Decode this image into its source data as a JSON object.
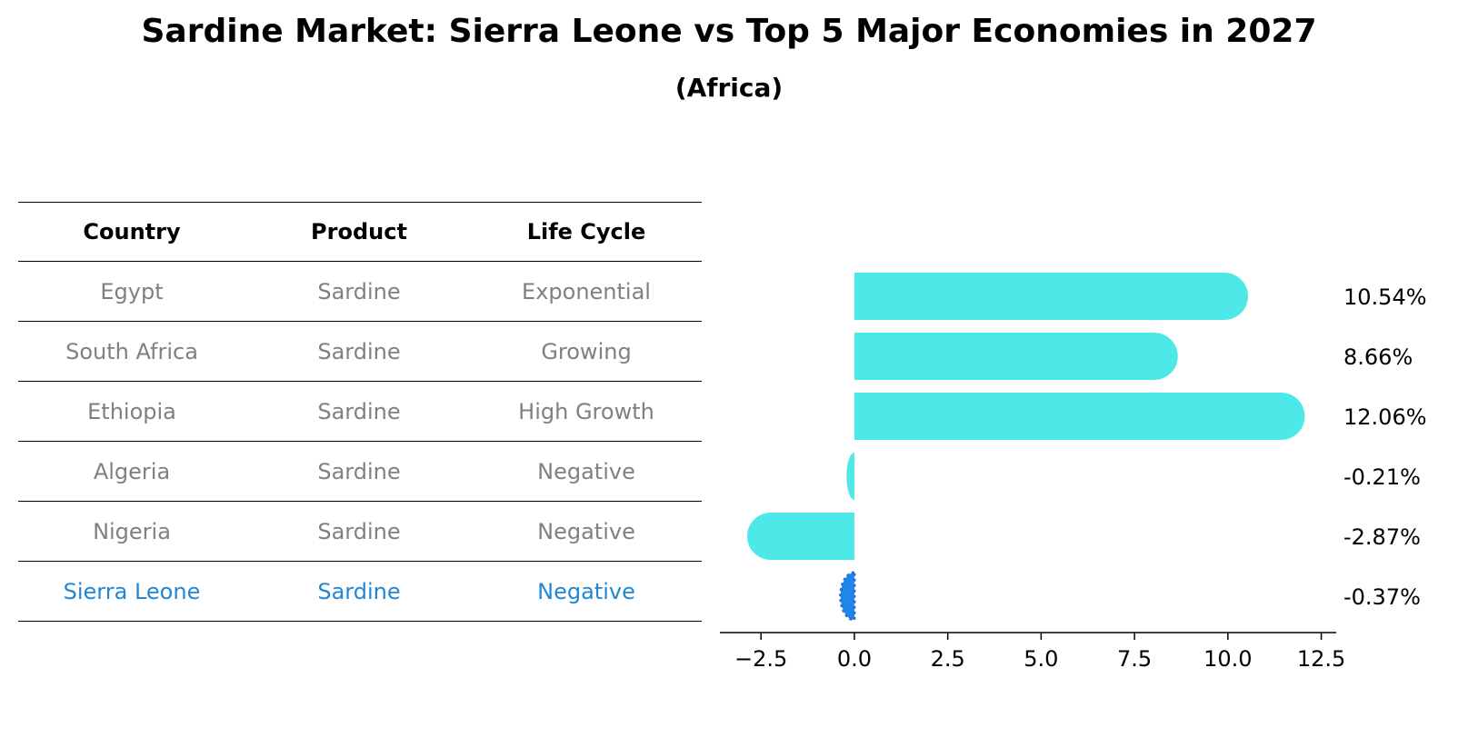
{
  "chart_data": {
    "type": "table+bar",
    "title": "Sardine Market: Sierra Leone vs Top 5 Major Economies in 2027",
    "subtitle": "(Africa)",
    "table_headers": [
      "Country",
      "Product",
      "Life Cycle"
    ],
    "rows": [
      {
        "country": "Egypt",
        "product": "Sardine",
        "life_cycle": "Exponential"
      },
      {
        "country": "South Africa",
        "product": "Sardine",
        "life_cycle": "Growing"
      },
      {
        "country": "Ethiopia",
        "product": "Sardine",
        "life_cycle": "High Growth"
      },
      {
        "country": "Algeria",
        "product": "Sardine",
        "life_cycle": "Negative"
      },
      {
        "country": "Nigeria",
        "product": "Sardine",
        "life_cycle": "Negative"
      },
      {
        "country": "Sierra Leone",
        "product": "Sardine",
        "life_cycle": "Negative"
      }
    ],
    "values": [
      10.54,
      8.66,
      12.06,
      -0.21,
      -2.87,
      -0.37
    ],
    "value_labels": [
      "10.54%",
      "8.66%",
      "12.06%",
      "-0.21%",
      "-2.87%",
      "-0.37%"
    ],
    "highlight_index": 5,
    "xlim": [
      -3.6,
      12.9
    ],
    "xticks": [
      -2.5,
      0.0,
      2.5,
      5.0,
      7.5,
      10.0,
      12.5
    ],
    "xtick_labels": [
      "−2.5",
      "0.0",
      "2.5",
      "5.0",
      "7.5",
      "10.0",
      "12.5"
    ],
    "colors": {
      "bar": "#4de8e8",
      "highlight_bar": "#1f87e8",
      "highlight_text": "#1f87d6",
      "text": "#808080"
    }
  }
}
